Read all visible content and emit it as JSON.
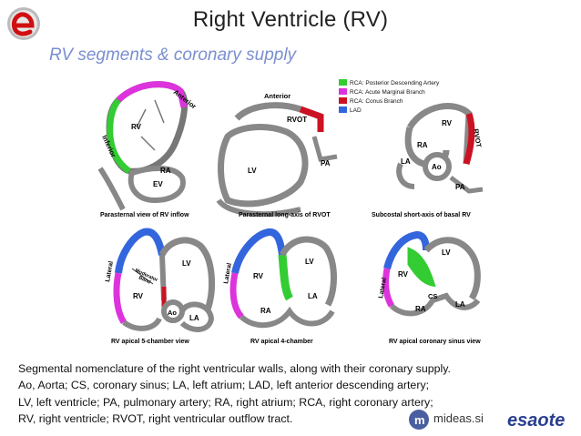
{
  "header": {
    "title": "Right Ventricle (RV)",
    "subtitle": "RV segments & coronary supply"
  },
  "legend": [
    {
      "label": "RCA: Posterior Descending Artery",
      "color": "#33cc33"
    },
    {
      "label": "RCA: Acute Marginal Branch",
      "color": "#dd33dd"
    },
    {
      "label": "RCA: Conus Branch",
      "color": "#cc1122"
    },
    {
      "label": "LAD",
      "color": "#3366dd"
    }
  ],
  "views": {
    "v1": {
      "caption": "Parasternal view of RV inflow",
      "labels": {
        "rv": "RV",
        "ra": "RA",
        "ev": "EV",
        "anterior": "Anterior",
        "inferior": "Inferior"
      }
    },
    "v2": {
      "caption": "Parasternal long-axis of RVOT",
      "labels": {
        "anterior": "Anterior",
        "rvot": "RVOT",
        "lv": "LV",
        "pa": "PA"
      }
    },
    "v3": {
      "caption": "Subcostal short-axis of basal RV",
      "labels": {
        "rv": "RV",
        "ra": "RA",
        "la": "LA",
        "ao": "Ao",
        "pa": "PA",
        "rvot": "RVOT"
      }
    },
    "v4": {
      "caption": "RV apical 5-chamber view",
      "labels": {
        "lateral": "Lateral",
        "moderator": "Moderator",
        "band": "Band",
        "lv": "LV",
        "rv": "RV",
        "ao": "Ao",
        "la": "LA"
      }
    },
    "v5": {
      "caption": "RV apical 4-chamber",
      "labels": {
        "lateral": "Lateral",
        "lv": "LV",
        "rv": "RV",
        "ra": "RA",
        "la": "LA"
      }
    },
    "v6": {
      "caption": "RV apical coronary sinus view",
      "labels": {
        "lateral": "Lateral",
        "lv": "LV",
        "rv": "RV",
        "cs": "CS",
        "ra": "RA",
        "la": "LA"
      }
    }
  },
  "caption": {
    "lines": [
      "Segmental nomenclature of the right ventricular walls, along with their coronary supply.",
      "Ao, Aorta; CS, coronary sinus; LA, left atrium; LAD, left anterior descending artery;",
      "LV, left ventricle; PA, pulmonary artery; RA, right atrium; RCA, right coronary artery;",
      "RV, right ventricle; RVOT, right ventricular outflow tract."
    ]
  },
  "footer": {
    "mideas": "mideas.si",
    "esaote": "esaote"
  }
}
